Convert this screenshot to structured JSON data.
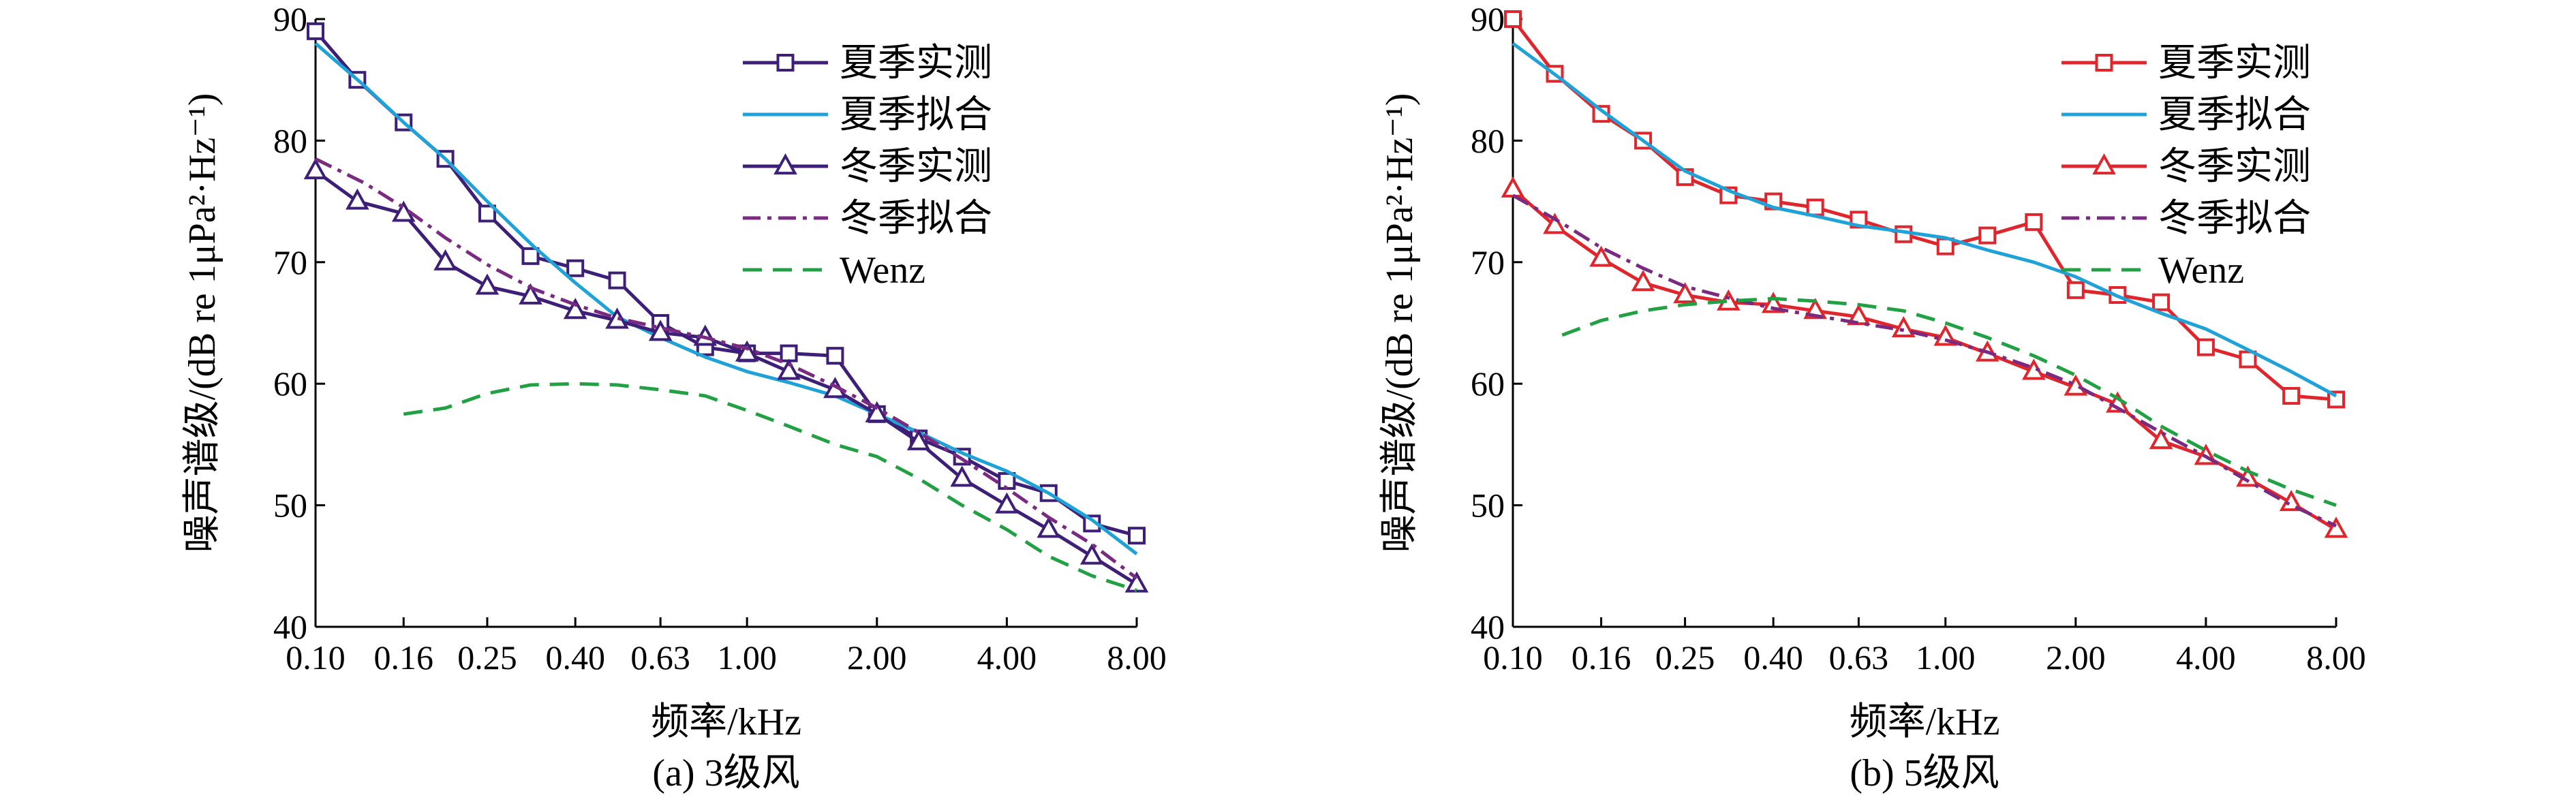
{
  "chart_data": [
    {
      "type": "line",
      "panel": "(a)",
      "caption": "(a) 3级风",
      "xlabel": "频率/kHz",
      "ylabel": "噪声谱级/(dB re 1μPa²·Hz⁻¹)",
      "ylim": [
        40,
        90
      ],
      "yticks": [
        40,
        50,
        60,
        70,
        80,
        90
      ],
      "xscale": "log",
      "xlim": [
        0.1,
        8.0
      ],
      "xticks": [
        0.1,
        0.16,
        0.25,
        0.4,
        0.63,
        1.0,
        2.0,
        4.0,
        8.0
      ],
      "xtick_labels": [
        "0.10",
        "0.16",
        "0.25",
        "0.40",
        "0.63",
        "1.00",
        "2.00",
        "4.00",
        "8.00"
      ],
      "legend_position": "top-right",
      "series": [
        {
          "name": "夏季实测",
          "color": "#3d1f78",
          "style": "solid",
          "marker": "square",
          "x": [
            0.1,
            0.125,
            0.16,
            0.2,
            0.25,
            0.315,
            0.4,
            0.5,
            0.63,
            0.8,
            1.0,
            1.25,
            1.6,
            2.0,
            2.5,
            3.15,
            4.0,
            5.0,
            6.3,
            8.0
          ],
          "y": [
            89,
            85,
            81.5,
            78.5,
            74,
            70.5,
            69.5,
            68.5,
            65,
            63,
            62.5,
            62.5,
            62.3,
            57.5,
            55.5,
            54,
            52,
            51,
            48.5,
            47.5
          ]
        },
        {
          "name": "夏季拟合",
          "color": "#1fa2d8",
          "style": "solid",
          "marker": "none",
          "x": [
            0.1,
            0.13,
            0.16,
            0.2,
            0.25,
            0.32,
            0.4,
            0.5,
            0.63,
            0.8,
            1.0,
            1.25,
            1.6,
            2.0,
            2.5,
            3.15,
            4.0,
            5.0,
            6.3,
            8.0
          ],
          "y": [
            88,
            84.5,
            81.5,
            78.5,
            75,
            71.3,
            68.3,
            65.5,
            63.8,
            62.2,
            61,
            60.1,
            59,
            57.5,
            56,
            54.3,
            52.8,
            51,
            48.8,
            46
          ]
        },
        {
          "name": "冬季实测",
          "color": "#3d1f78",
          "style": "solid",
          "marker": "triangle",
          "x": [
            0.1,
            0.125,
            0.16,
            0.2,
            0.25,
            0.315,
            0.4,
            0.5,
            0.63,
            0.8,
            1.0,
            1.25,
            1.6,
            2.0,
            2.5,
            3.15,
            4.0,
            5.0,
            6.3,
            8.0
          ],
          "y": [
            77.5,
            75,
            74,
            70,
            68,
            67.2,
            66,
            65.2,
            64.2,
            63.8,
            62.5,
            61,
            59.5,
            57.5,
            55.2,
            52.2,
            50,
            48,
            45.8,
            43.5
          ]
        },
        {
          "name": "冬季拟合",
          "color": "#7b2a82",
          "style": "dashdot",
          "marker": "none",
          "x": [
            0.1,
            0.13,
            0.16,
            0.2,
            0.25,
            0.32,
            0.4,
            0.5,
            0.63,
            0.8,
            1.0,
            1.25,
            1.6,
            2.0,
            2.5,
            3.15,
            4.0,
            5.0,
            6.3,
            8.0
          ],
          "y": [
            78.5,
            76.5,
            74.5,
            72,
            69.8,
            67.8,
            66.5,
            65.4,
            64.6,
            63.8,
            62.9,
            61.6,
            59.8,
            58,
            56,
            53.8,
            51.4,
            49,
            46.8,
            44
          ]
        },
        {
          "name": "Wenz",
          "color": "#22a044",
          "style": "dashed",
          "marker": "none",
          "x": [
            0.16,
            0.2,
            0.25,
            0.315,
            0.4,
            0.5,
            0.63,
            0.8,
            1.0,
            1.25,
            1.6,
            2.0,
            2.5,
            3.15,
            4.0,
            5.0,
            6.3,
            8.0
          ],
          "y": [
            57.5,
            58,
            59.2,
            59.9,
            60,
            59.9,
            59.5,
            59,
            57.8,
            56.5,
            55,
            54,
            52.2,
            50,
            48,
            45.8,
            44.2,
            43
          ]
        }
      ]
    },
    {
      "type": "line",
      "panel": "(b)",
      "caption": "(b) 5级风",
      "xlabel": "频率/kHz",
      "ylabel": "噪声谱级/(dB re 1μPa²·Hz⁻¹)",
      "ylim": [
        40,
        90
      ],
      "yticks": [
        40,
        50,
        60,
        70,
        80,
        90
      ],
      "xscale": "log",
      "xlim": [
        0.1,
        8.0
      ],
      "xticks": [
        0.1,
        0.16,
        0.25,
        0.4,
        0.63,
        1.0,
        2.0,
        4.0,
        8.0
      ],
      "xtick_labels": [
        "0.10",
        "0.16",
        "0.25",
        "0.40",
        "0.63",
        "1.00",
        "2.00",
        "4.00",
        "8.00"
      ],
      "legend_position": "top-right",
      "series": [
        {
          "name": "夏季实测",
          "color": "#e0262d",
          "style": "solid",
          "marker": "square",
          "x": [
            0.1,
            0.125,
            0.16,
            0.2,
            0.25,
            0.315,
            0.4,
            0.5,
            0.63,
            0.8,
            1.0,
            1.25,
            1.6,
            2.0,
            2.5,
            3.15,
            4.0,
            5.0,
            6.3,
            8.0
          ],
          "y": [
            90,
            85.5,
            82.2,
            80,
            77,
            75.5,
            75,
            74.5,
            73.5,
            72.3,
            71.3,
            72.2,
            73.3,
            67.7,
            67.3,
            66.7,
            63,
            62,
            59,
            58.7
          ]
        },
        {
          "name": "夏季拟合",
          "color": "#1fa2d8",
          "style": "solid",
          "marker": "none",
          "x": [
            0.1,
            0.13,
            0.16,
            0.2,
            0.25,
            0.32,
            0.4,
            0.5,
            0.63,
            0.8,
            1.0,
            1.25,
            1.6,
            2.0,
            2.5,
            3.15,
            4.0,
            5.0,
            6.3,
            8.0
          ],
          "y": [
            88,
            85,
            82.5,
            80,
            77.5,
            75.8,
            74.5,
            73.8,
            73,
            72.5,
            72,
            71,
            70,
            68.8,
            67.2,
            65.8,
            64.5,
            62.8,
            61,
            59
          ]
        },
        {
          "name": "冬季实测",
          "color": "#e0262d",
          "style": "solid",
          "marker": "triangle",
          "x": [
            0.1,
            0.125,
            0.16,
            0.2,
            0.25,
            0.315,
            0.4,
            0.5,
            0.63,
            0.8,
            1.0,
            1.25,
            1.6,
            2.0,
            2.5,
            3.15,
            4.0,
            5.0,
            6.3,
            8.0
          ],
          "y": [
            76,
            73,
            70.3,
            68.3,
            67.3,
            66.7,
            66.5,
            66,
            65.5,
            64.5,
            63.8,
            62.5,
            61,
            59.7,
            58.3,
            55.3,
            54,
            52.2,
            50.2,
            48
          ]
        },
        {
          "name": "冬季拟合",
          "color": "#7b2a82",
          "style": "dashdot",
          "marker": "none",
          "x": [
            0.1,
            0.13,
            0.16,
            0.2,
            0.25,
            0.32,
            0.4,
            0.5,
            0.63,
            0.8,
            1.0,
            1.25,
            1.6,
            2.0,
            2.5,
            3.15,
            4.0,
            5.0,
            6.3,
            8.0
          ],
          "y": [
            75.5,
            73.2,
            71.2,
            69.5,
            68,
            67,
            66.2,
            65.6,
            65,
            64.4,
            63.6,
            62.6,
            61.3,
            59.9,
            58,
            56,
            54,
            52,
            50,
            48.3
          ]
        },
        {
          "name": "Wenz",
          "color": "#22a044",
          "style": "dashed",
          "marker": "none",
          "x": [
            0.13,
            0.16,
            0.2,
            0.25,
            0.315,
            0.4,
            0.5,
            0.63,
            0.8,
            1.0,
            1.25,
            1.6,
            2.0,
            2.5,
            3.15,
            4.0,
            5.0,
            6.3,
            8.0
          ],
          "y": [
            64,
            65.2,
            66,
            66.5,
            66.8,
            67,
            66.8,
            66.5,
            66,
            65,
            63.8,
            62.3,
            60.7,
            58.8,
            56.5,
            54.5,
            52.8,
            51.3,
            50
          ]
        }
      ]
    }
  ]
}
